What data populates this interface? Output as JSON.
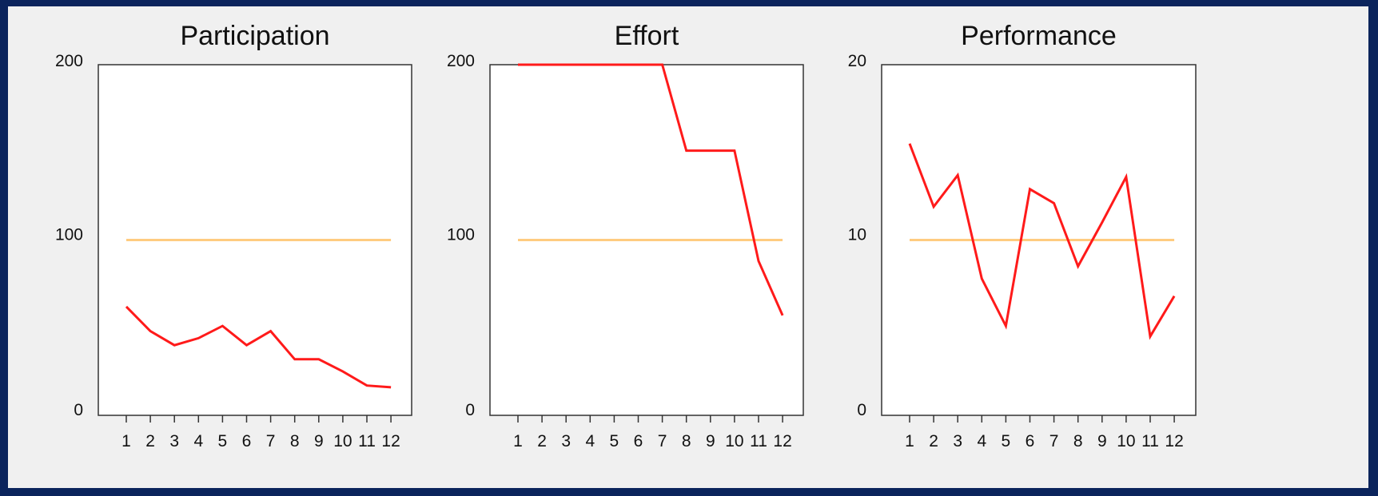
{
  "colors": {
    "background_border": "#0b245c",
    "panel_background": "#f0f0f0",
    "plot_background": "#ffffff",
    "axis": "#333333",
    "series": "#ff1a1a",
    "reference": "#ffcc80"
  },
  "chart_data": [
    {
      "type": "line",
      "title": "Participation",
      "x": [
        1,
        2,
        3,
        4,
        5,
        6,
        7,
        8,
        9,
        10,
        11,
        12
      ],
      "x_tick_labels": [
        "1",
        "2",
        "3",
        "4",
        "5",
        "6",
        "7",
        "8",
        "9",
        "10",
        "11",
        "12"
      ],
      "ylim": [
        0,
        200
      ],
      "y_tick_labels": [
        "200",
        "100",
        "0"
      ],
      "series": [
        {
          "values": [
            62,
            48,
            40,
            44,
            51,
            40,
            48,
            32,
            32,
            25,
            17,
            16
          ]
        },
        {
          "values": [
            100,
            100,
            100,
            100,
            100,
            100,
            100,
            100,
            100,
            100,
            100,
            100
          ]
        }
      ]
    },
    {
      "type": "line",
      "title": "Effort",
      "x": [
        1,
        2,
        3,
        4,
        5,
        6,
        7,
        8,
        9,
        10,
        11,
        12
      ],
      "x_tick_labels": [
        "1",
        "2",
        "3",
        "4",
        "5",
        "6",
        "7",
        "8",
        "9",
        "10",
        "11",
        "12"
      ],
      "ylim": [
        0,
        200
      ],
      "y_tick_labels": [
        "200",
        "100",
        "0"
      ],
      "series": [
        {
          "values": [
            200,
            200,
            200,
            200,
            200,
            200,
            200,
            151,
            151,
            151,
            88,
            57
          ]
        },
        {
          "values": [
            100,
            100,
            100,
            100,
            100,
            100,
            100,
            100,
            100,
            100,
            100,
            100
          ]
        }
      ]
    },
    {
      "type": "line",
      "title": "Performance",
      "x": [
        1,
        2,
        3,
        4,
        5,
        6,
        7,
        8,
        9,
        10,
        11,
        12
      ],
      "x_tick_labels": [
        "1",
        "2",
        "3",
        "4",
        "5",
        "6",
        "7",
        "8",
        "9",
        "10",
        "11",
        "12"
      ],
      "ylim": [
        0,
        20
      ],
      "y_tick_labels": [
        "20",
        "10",
        "0"
      ],
      "series": [
        {
          "values": [
            15.5,
            11.9,
            13.7,
            7.8,
            5.1,
            12.9,
            12.1,
            8.5,
            11.0,
            13.6,
            4.5,
            6.8
          ]
        },
        {
          "values": [
            10,
            10,
            10,
            10,
            10,
            10,
            10,
            10,
            10,
            10,
            10,
            10
          ]
        }
      ]
    }
  ]
}
